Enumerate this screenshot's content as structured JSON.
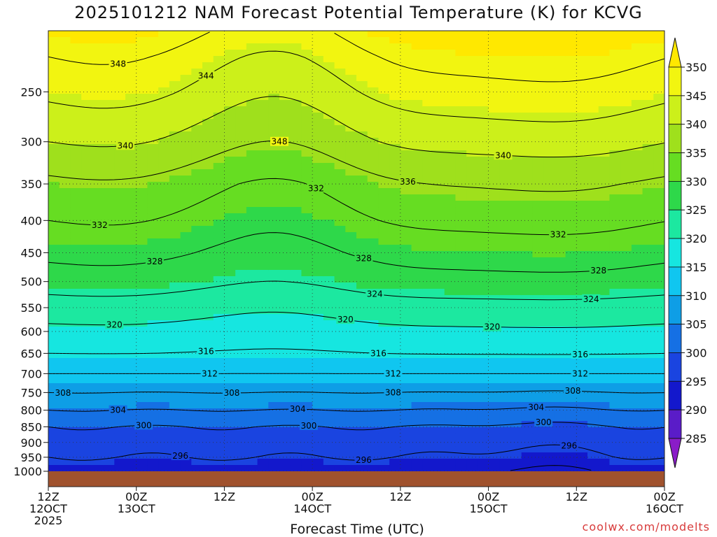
{
  "title": "2025101212 NAM Forecast Potential Temperature (K) for KCVG",
  "x_axis_label": "Forecast Time (UTC)",
  "credit": "coolwx.com/modelts",
  "chart_data": {
    "type": "heatmap",
    "title": "2025101212 NAM Forecast Potential Temperature (K) for KCVG",
    "xlabel": "Forecast Time (UTC)",
    "ylabel": "",
    "x_ticks": [
      {
        "hour": 0,
        "lines": [
          "12Z",
          "12OCT",
          "2025"
        ]
      },
      {
        "hour": 12,
        "lines": [
          "00Z",
          "13OCT"
        ]
      },
      {
        "hour": 24,
        "lines": [
          "12Z"
        ]
      },
      {
        "hour": 36,
        "lines": [
          "00Z",
          "14OCT"
        ]
      },
      {
        "hour": 48,
        "lines": [
          "12Z"
        ]
      },
      {
        "hour": 60,
        "lines": [
          "00Z",
          "15OCT"
        ]
      },
      {
        "hour": 72,
        "lines": [
          "12Z"
        ]
      },
      {
        "hour": 84,
        "lines": [
          "00Z",
          "16OCT"
        ]
      }
    ],
    "y_ticks": [
      "250",
      "300",
      "350",
      "400",
      "450",
      "500",
      "550",
      "600",
      "650",
      "700",
      "750",
      "800",
      "850",
      "900",
      "950",
      "1000"
    ],
    "y_tick_values": [
      250,
      300,
      350,
      400,
      450,
      500,
      550,
      600,
      650,
      700,
      750,
      800,
      850,
      900,
      950,
      1000
    ],
    "y_scale": "log-pressure",
    "xlim_hours": [
      0,
      84
    ],
    "ylim_hpa": [
      1000,
      200
    ],
    "grid": true,
    "colorbar_levels": [
      "350",
      "345",
      "340",
      "335",
      "330",
      "325",
      "320",
      "315",
      "310",
      "305",
      "300",
      "295",
      "290",
      "285"
    ],
    "colorbar_colors": [
      "#ffe800",
      "#f2f510",
      "#ccf01a",
      "#9fe01c",
      "#66dd22",
      "#2ed84a",
      "#1ce8a0",
      "#16e6e0",
      "#10c6f0",
      "#0e9ee6",
      "#1570e4",
      "#1a44e0",
      "#1318cc",
      "#5a1cc8",
      "#8a1cc8"
    ],
    "ground_color": "#a0522d",
    "theta_profile": {
      "pressure_hpa": [
        1000,
        950,
        900,
        850,
        800,
        750,
        700,
        650,
        600,
        550,
        500,
        450,
        400,
        350,
        300,
        250,
        220
      ],
      "theta_k": [
        293,
        296,
        298,
        300,
        304,
        308,
        312,
        316,
        319,
        322,
        326,
        329,
        332,
        335,
        340,
        345,
        348
      ]
    },
    "contour_levels": [
      292,
      296,
      300,
      304,
      308,
      312,
      316,
      320,
      324,
      328,
      332,
      336,
      340,
      344,
      348
    ],
    "contour_labels": [
      {
        "hour": 9.5,
        "theta": "348"
      },
      {
        "hour": 31.5,
        "theta": "348"
      },
      {
        "hour": 10.5,
        "theta": "340"
      },
      {
        "hour": 21.5,
        "theta": "344"
      },
      {
        "hour": 62,
        "theta": "340"
      },
      {
        "hour": 49,
        "theta": "336"
      },
      {
        "hour": 7,
        "theta": "332"
      },
      {
        "hour": 36.5,
        "theta": "332"
      },
      {
        "hour": 69.5,
        "theta": "332"
      },
      {
        "hour": 14.5,
        "theta": "328"
      },
      {
        "hour": 43,
        "theta": "328"
      },
      {
        "hour": 75,
        "theta": "328"
      },
      {
        "hour": 74,
        "theta": "324"
      },
      {
        "hour": 44.5,
        "theta": "324"
      },
      {
        "hour": 9,
        "theta": "320"
      },
      {
        "hour": 40.5,
        "theta": "320"
      },
      {
        "hour": 60.5,
        "theta": "320"
      },
      {
        "hour": 72.5,
        "theta": "316"
      },
      {
        "hour": 21.5,
        "theta": "316"
      },
      {
        "hour": 45,
        "theta": "316"
      },
      {
        "hour": 22,
        "theta": "312"
      },
      {
        "hour": 47,
        "theta": "312"
      },
      {
        "hour": 72.5,
        "theta": "312"
      },
      {
        "hour": 2,
        "theta": "308"
      },
      {
        "hour": 25,
        "theta": "308"
      },
      {
        "hour": 47,
        "theta": "308"
      },
      {
        "hour": 71.5,
        "theta": "308"
      },
      {
        "hour": 9.5,
        "theta": "304"
      },
      {
        "hour": 34,
        "theta": "304"
      },
      {
        "hour": 66.5,
        "theta": "304"
      },
      {
        "hour": 13,
        "theta": "300"
      },
      {
        "hour": 35.5,
        "theta": "300"
      },
      {
        "hour": 67.5,
        "theta": "300"
      },
      {
        "hour": 18,
        "theta": "296"
      },
      {
        "hour": 43,
        "theta": "296"
      },
      {
        "hour": 71,
        "theta": "296"
      }
    ]
  }
}
